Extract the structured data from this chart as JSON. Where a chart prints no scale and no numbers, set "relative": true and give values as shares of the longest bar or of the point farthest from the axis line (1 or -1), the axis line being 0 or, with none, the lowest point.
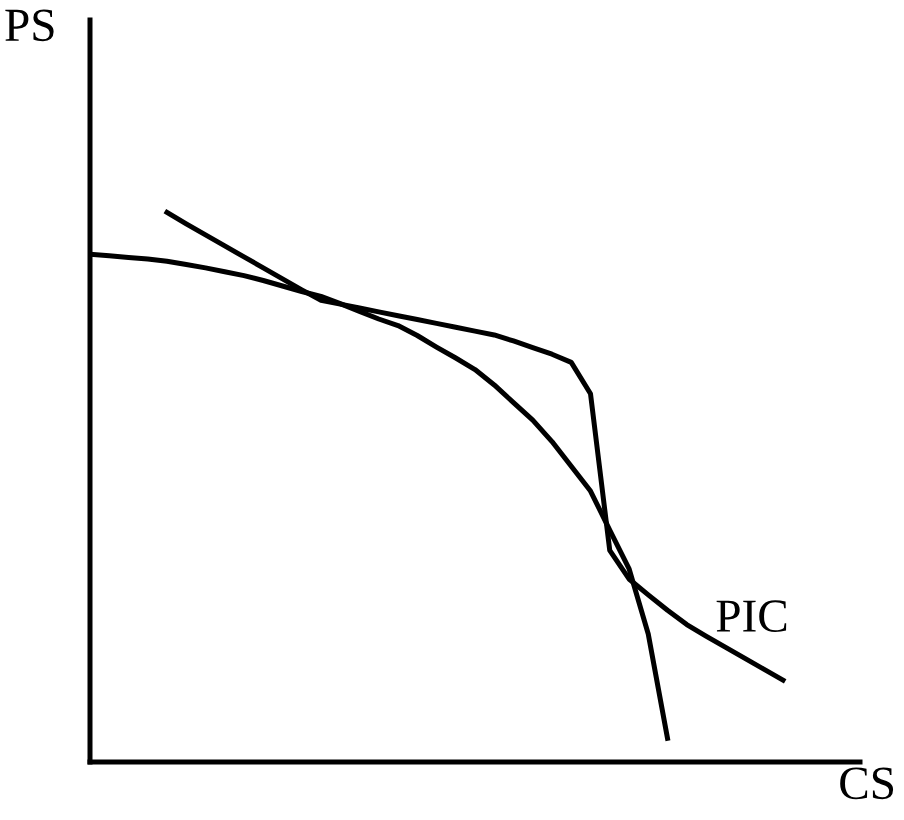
{
  "chart_data": {
    "type": "line",
    "relative": true,
    "xlabel": "CS",
    "ylabel": "PS",
    "legend": false,
    "marker": "none",
    "line_style": "solid",
    "categories": [
      null,
      null,
      null,
      null,
      null,
      null,
      null,
      null,
      null,
      null,
      null,
      null,
      null,
      null,
      null,
      null,
      null,
      null,
      null,
      null,
      null,
      null,
      null,
      null,
      null,
      null,
      null,
      null,
      null,
      null,
      null,
      null,
      null,
      null,
      null,
      null,
      null,
      null,
      null,
      null,
      null
    ],
    "series": [
      {
        "color": "#000000",
        "values": [
          0.924,
          0.921,
          0.918,
          0.915,
          0.911,
          0.905,
          0.899,
          0.892,
          0.885,
          0.876,
          0.866,
          0.856,
          0.847,
          0.834,
          0.82,
          0.806,
          0.794,
          0.776,
          0.755,
          0.735,
          0.714,
          0.686,
          0.654,
          0.622,
          0.583,
          0.538,
          0.493,
          0.422,
          0.352,
          0.233,
          0.043,
          null,
          null,
          null,
          null,
          null,
          null,
          null,
          null,
          null,
          null
        ]
      },
      {
        "name": "PIC",
        "color": "#000000",
        "values": [
          null,
          null,
          null,
          null,
          1,
          0.979,
          0.959,
          0.939,
          0.919,
          0.899,
          0.879,
          0.859,
          0.84,
          0.833,
          0.826,
          0.819,
          0.812,
          0.805,
          0.798,
          0.791,
          0.784,
          0.777,
          0.766,
          0.754,
          0.742,
          0.727,
          0.67,
          0.385,
          0.333,
          0.304,
          0.276,
          0.25,
          0.229,
          0.209,
          0.189,
          0.169,
          0.149,
          null,
          null,
          null,
          null
        ]
      }
    ]
  }
}
